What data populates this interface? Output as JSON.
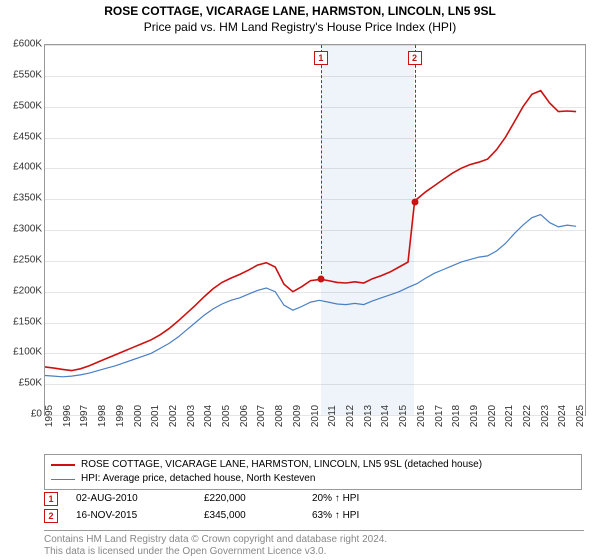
{
  "title": {
    "main": "ROSE COTTAGE, VICARAGE LANE, HARMSTON, LINCOLN, LN5 9SL",
    "sub": "Price paid vs. HM Land Registry's House Price Index (HPI)"
  },
  "chart": {
    "type": "line",
    "background_color": "#ffffff",
    "grid_color": "#e5e5e5",
    "border_color": "#999999",
    "xlim": [
      1995,
      2025.5
    ],
    "ylim": [
      0,
      600
    ],
    "yticks": [
      0,
      50,
      100,
      150,
      200,
      250,
      300,
      350,
      400,
      450,
      500,
      550,
      600
    ],
    "ytick_labels": [
      "£0",
      "£50K",
      "£100K",
      "£150K",
      "£200K",
      "£250K",
      "£300K",
      "£350K",
      "£400K",
      "£450K",
      "£500K",
      "£550K",
      "£600K"
    ],
    "xticks": [
      1995,
      1996,
      1997,
      1998,
      1999,
      2000,
      2001,
      2002,
      2003,
      2004,
      2005,
      2006,
      2007,
      2008,
      2009,
      2010,
      2011,
      2012,
      2013,
      2014,
      2015,
      2016,
      2017,
      2018,
      2019,
      2020,
      2021,
      2022,
      2023,
      2024,
      2025
    ],
    "shaded_xrange": [
      2010.58,
      2015.87
    ],
    "series": [
      {
        "name": "property",
        "label": "ROSE COTTAGE, VICARAGE LANE, HARMSTON, LINCOLN, LN5 9SL (detached house)",
        "color": "#cc1111",
        "line_width": 1.6,
        "data": [
          [
            1995.0,
            78
          ],
          [
            1995.5,
            76
          ],
          [
            1996.0,
            74
          ],
          [
            1996.5,
            72
          ],
          [
            1997.0,
            75
          ],
          [
            1997.5,
            80
          ],
          [
            1998.0,
            86
          ],
          [
            1998.5,
            92
          ],
          [
            1999.0,
            98
          ],
          [
            1999.5,
            104
          ],
          [
            2000.0,
            110
          ],
          [
            2000.5,
            116
          ],
          [
            2001.0,
            122
          ],
          [
            2001.5,
            130
          ],
          [
            2002.0,
            140
          ],
          [
            2002.5,
            152
          ],
          [
            2003.0,
            165
          ],
          [
            2003.5,
            178
          ],
          [
            2004.0,
            192
          ],
          [
            2004.5,
            205
          ],
          [
            2005.0,
            215
          ],
          [
            2005.5,
            222
          ],
          [
            2006.0,
            228
          ],
          [
            2006.5,
            235
          ],
          [
            2007.0,
            243
          ],
          [
            2007.5,
            247
          ],
          [
            2008.0,
            240
          ],
          [
            2008.5,
            212
          ],
          [
            2009.0,
            200
          ],
          [
            2009.5,
            208
          ],
          [
            2010.0,
            218
          ],
          [
            2010.58,
            220
          ],
          [
            2011.0,
            218
          ],
          [
            2011.5,
            215
          ],
          [
            2012.0,
            214
          ],
          [
            2012.5,
            216
          ],
          [
            2013.0,
            214
          ],
          [
            2013.5,
            221
          ],
          [
            2014.0,
            226
          ],
          [
            2014.5,
            232
          ],
          [
            2015.0,
            240
          ],
          [
            2015.5,
            248
          ],
          [
            2015.87,
            345
          ],
          [
            2016.0,
            350
          ],
          [
            2016.5,
            362
          ],
          [
            2017.0,
            372
          ],
          [
            2017.5,
            382
          ],
          [
            2018.0,
            392
          ],
          [
            2018.5,
            400
          ],
          [
            2019.0,
            406
          ],
          [
            2019.5,
            410
          ],
          [
            2020.0,
            415
          ],
          [
            2020.5,
            430
          ],
          [
            2021.0,
            450
          ],
          [
            2021.5,
            475
          ],
          [
            2022.0,
            500
          ],
          [
            2022.5,
            520
          ],
          [
            2023.0,
            526
          ],
          [
            2023.5,
            506
          ],
          [
            2024.0,
            492
          ],
          [
            2024.5,
            493
          ],
          [
            2025.0,
            492
          ]
        ]
      },
      {
        "name": "hpi",
        "label": "HPI: Average price, detached house, North Kesteven",
        "color": "#4a7fc4",
        "line_width": 1.2,
        "data": [
          [
            1995.0,
            64
          ],
          [
            1995.5,
            63
          ],
          [
            1996.0,
            62
          ],
          [
            1996.5,
            63
          ],
          [
            1997.0,
            65
          ],
          [
            1997.5,
            68
          ],
          [
            1998.0,
            72
          ],
          [
            1998.5,
            76
          ],
          [
            1999.0,
            80
          ],
          [
            1999.5,
            85
          ],
          [
            2000.0,
            90
          ],
          [
            2000.5,
            95
          ],
          [
            2001.0,
            100
          ],
          [
            2001.5,
            108
          ],
          [
            2002.0,
            116
          ],
          [
            2002.5,
            126
          ],
          [
            2003.0,
            138
          ],
          [
            2003.5,
            150
          ],
          [
            2004.0,
            162
          ],
          [
            2004.5,
            172
          ],
          [
            2005.0,
            180
          ],
          [
            2005.5,
            186
          ],
          [
            2006.0,
            190
          ],
          [
            2006.5,
            196
          ],
          [
            2007.0,
            202
          ],
          [
            2007.5,
            206
          ],
          [
            2008.0,
            200
          ],
          [
            2008.5,
            178
          ],
          [
            2009.0,
            170
          ],
          [
            2009.5,
            176
          ],
          [
            2010.0,
            183
          ],
          [
            2010.5,
            186
          ],
          [
            2011.0,
            183
          ],
          [
            2011.5,
            180
          ],
          [
            2012.0,
            179
          ],
          [
            2012.5,
            181
          ],
          [
            2013.0,
            179
          ],
          [
            2013.5,
            185
          ],
          [
            2014.0,
            190
          ],
          [
            2014.5,
            195
          ],
          [
            2015.0,
            200
          ],
          [
            2015.5,
            207
          ],
          [
            2016.0,
            213
          ],
          [
            2016.5,
            222
          ],
          [
            2017.0,
            230
          ],
          [
            2017.5,
            236
          ],
          [
            2018.0,
            242
          ],
          [
            2018.5,
            248
          ],
          [
            2019.0,
            252
          ],
          [
            2019.5,
            256
          ],
          [
            2020.0,
            258
          ],
          [
            2020.5,
            266
          ],
          [
            2021.0,
            278
          ],
          [
            2021.5,
            294
          ],
          [
            2022.0,
            308
          ],
          [
            2022.5,
            320
          ],
          [
            2023.0,
            325
          ],
          [
            2023.5,
            312
          ],
          [
            2024.0,
            305
          ],
          [
            2024.5,
            308
          ],
          [
            2025.0,
            306
          ]
        ]
      }
    ],
    "sale_points": [
      {
        "n": "1",
        "x": 2010.58,
        "y": 220,
        "color": "#cc1111"
      },
      {
        "n": "2",
        "x": 2015.87,
        "y": 345,
        "color": "#cc1111"
      }
    ],
    "title_fontsize": 12,
    "label_fontsize": 10
  },
  "legend": {
    "border_color": "#999999",
    "items": [
      {
        "color": "#cc1111",
        "width": 2,
        "label": "ROSE COTTAGE, VICARAGE LANE, HARMSTON, LINCOLN, LN5 9SL (detached house)"
      },
      {
        "color": "#4a7fc4",
        "width": 1,
        "label": "HPI: Average price, detached house, North Kesteven"
      }
    ]
  },
  "sales": [
    {
      "n": "1",
      "color": "#cc1111",
      "date": "02-AUG-2010",
      "price": "£220,000",
      "pct": "20% ↑ HPI"
    },
    {
      "n": "2",
      "color": "#cc1111",
      "date": "16-NOV-2015",
      "price": "£345,000",
      "pct": "63% ↑ HPI"
    }
  ],
  "footer": {
    "line1": "Contains HM Land Registry data © Crown copyright and database right 2024.",
    "line2": "This data is licensed under the Open Government Licence v3.0."
  }
}
